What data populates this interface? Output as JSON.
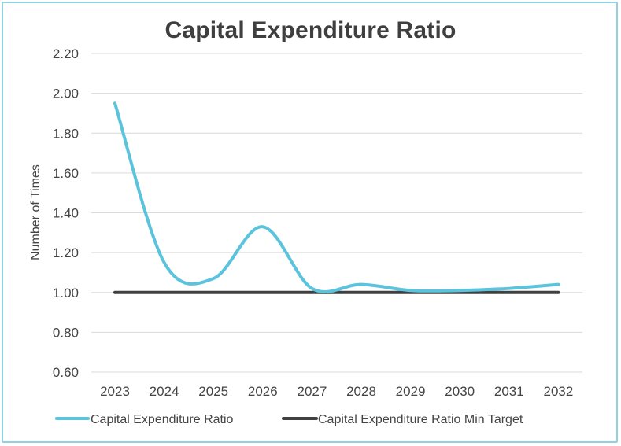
{
  "chart_data": {
    "type": "line",
    "title": "Capital Expenditure Ratio",
    "xlabel": "",
    "ylabel": "Number of Times",
    "ylim": [
      0.6,
      2.2
    ],
    "yticks": [
      "0.60",
      "0.80",
      "1.00",
      "1.20",
      "1.40",
      "1.60",
      "1.80",
      "2.00",
      "2.20"
    ],
    "categories": [
      "2023",
      "2024",
      "2025",
      "2026",
      "2027",
      "2028",
      "2029",
      "2030",
      "2031",
      "2032"
    ],
    "series": [
      {
        "name": "Capital Expenditure Ratio",
        "color": "#5bc4dc",
        "values": [
          1.95,
          1.15,
          1.07,
          1.33,
          1.02,
          1.04,
          1.01,
          1.01,
          1.02,
          1.04
        ]
      },
      {
        "name": "Capital Expenditure Ratio Min Target",
        "color": "#404040",
        "values": [
          1.0,
          1.0,
          1.0,
          1.0,
          1.0,
          1.0,
          1.0,
          1.0,
          1.0,
          1.0
        ]
      }
    ],
    "grid": true,
    "legend": "bottom"
  }
}
